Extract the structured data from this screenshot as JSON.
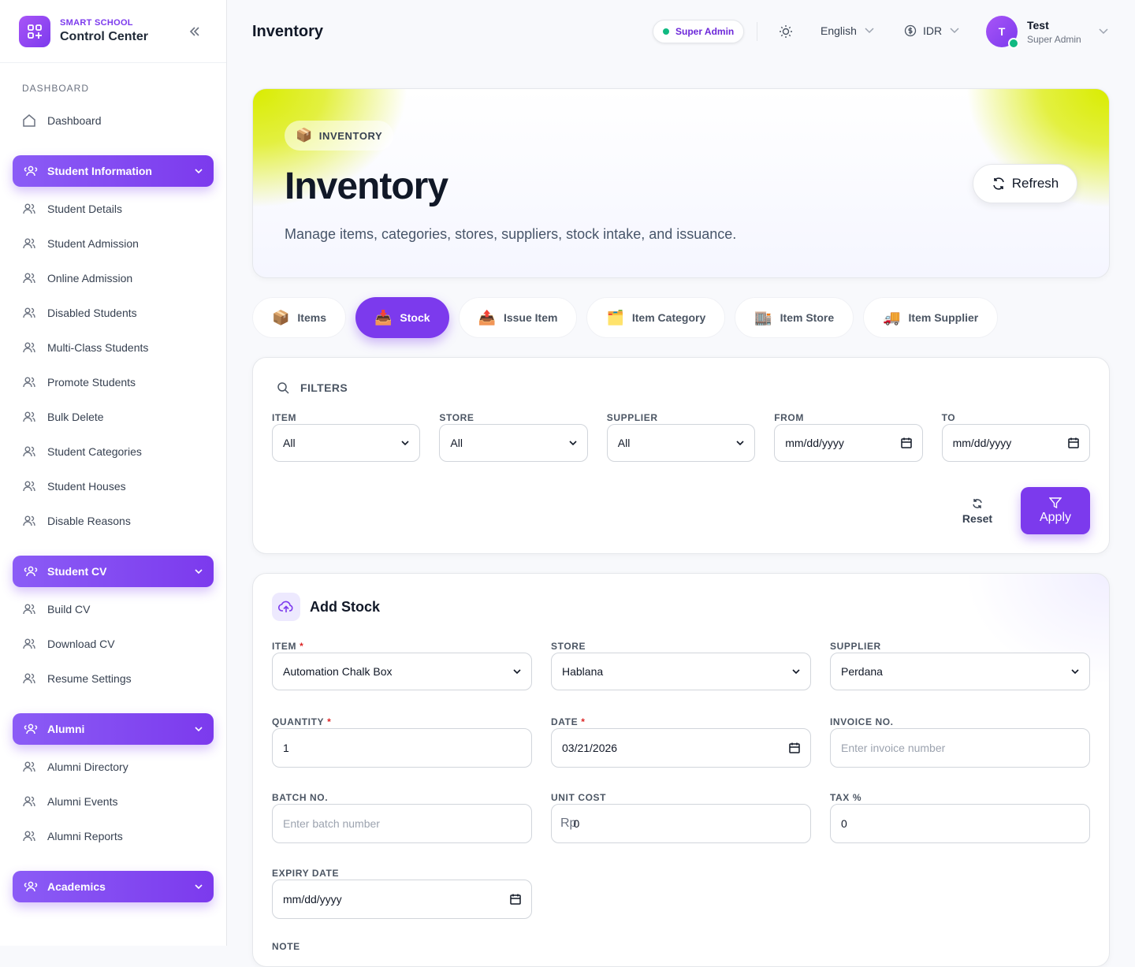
{
  "sidebar": {
    "brand_small": "SMART SCHOOL",
    "brand": "Control Center",
    "section": "DASHBOARD",
    "dashboard": "Dashboard",
    "groups": [
      {
        "title": "Student Information",
        "items": [
          "Student Details",
          "Student Admission",
          "Online Admission",
          "Disabled Students",
          "Multi-Class Students",
          "Promote Students",
          "Bulk Delete",
          "Student Categories",
          "Student Houses",
          "Disable Reasons"
        ]
      },
      {
        "title": "Student CV",
        "items": [
          "Build CV",
          "Download CV",
          "Resume Settings"
        ]
      },
      {
        "title": "Alumni",
        "items": [
          "Alumni Directory",
          "Alumni Events",
          "Alumni Reports"
        ]
      },
      {
        "title": "Academics"
      }
    ]
  },
  "topbar": {
    "title": "Inventory",
    "role_badge": "Super Admin",
    "language": "English",
    "currency": "IDR",
    "avatar": "T",
    "user_name": "Test",
    "user_role": "Super Admin"
  },
  "hero": {
    "badge_icon": "📦",
    "badge": "INVENTORY",
    "title": "Inventory",
    "subtitle": "Manage items, categories, stores, suppliers, stock intake, and issuance.",
    "refresh": "Refresh"
  },
  "tabs": {
    "active": 1,
    "items": [
      {
        "icon": "📦",
        "label": "Items"
      },
      {
        "icon": "📥",
        "label": "Stock"
      },
      {
        "icon": "📤",
        "label": "Issue Item"
      },
      {
        "icon": "🗂️",
        "label": "Item Category"
      },
      {
        "icon": "🏬",
        "label": "Item Store"
      },
      {
        "icon": "🚚",
        "label": "Item Supplier"
      }
    ]
  },
  "filters": {
    "title": "FILTERS",
    "fields": [
      {
        "label": "ITEM",
        "value": "All",
        "kind": "select"
      },
      {
        "label": "STORE",
        "value": "All",
        "kind": "select"
      },
      {
        "label": "SUPPLIER",
        "value": "All",
        "kind": "select"
      },
      {
        "label": "FROM",
        "value": "mm/dd/yyyy",
        "kind": "date"
      },
      {
        "label": "TO",
        "value": "mm/dd/yyyy",
        "kind": "date"
      }
    ],
    "reset": "Reset",
    "apply": "Apply"
  },
  "add_stock": {
    "title": "Add Stock",
    "required_mark": "*",
    "fields": [
      {
        "label": "ITEM",
        "required": true,
        "value": "Automation Chalk Box",
        "kind": "select"
      },
      {
        "label": "STORE",
        "value": "Hablana",
        "kind": "select"
      },
      {
        "label": "SUPPLIER",
        "value": "Perdana",
        "kind": "select"
      },
      {
        "label": "QUANTITY",
        "required": true,
        "value": 1,
        "kind": "input"
      },
      {
        "label": "DATE",
        "required": true,
        "value": "03/21/2026",
        "kind": "date"
      },
      {
        "label": "INVOICE NO.",
        "placeholder": "Enter invoice number",
        "kind": "input"
      },
      {
        "label": "BATCH NO.",
        "placeholder": "Enter batch number",
        "kind": "input"
      },
      {
        "label": "UNIT COST",
        "prefix": "Rp",
        "value": 0,
        "kind": "input"
      },
      {
        "label": "TAX %",
        "value": 0,
        "kind": "input"
      },
      {
        "label": "EXPIRY DATE",
        "value": "mm/dd/yyyy",
        "kind": "date"
      }
    ],
    "next_label": "NOTE"
  }
}
